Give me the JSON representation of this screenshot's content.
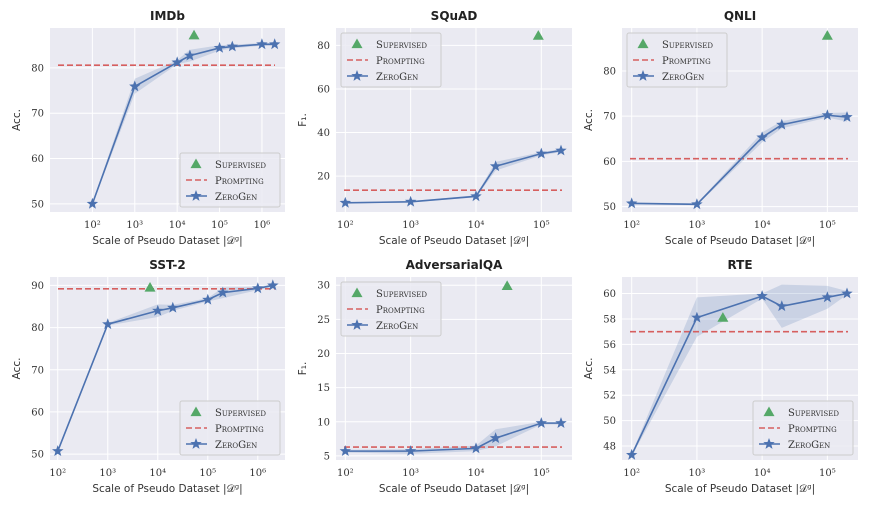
{
  "chart_data": [
    {
      "type": "line",
      "title": "IMDb",
      "ylabel": "Acc.",
      "xlabel": "Scale of Pseudo Dataset |𝒟ᵍ|",
      "xscale": "log",
      "xlim": [
        10,
        3500000
      ],
      "ylim": [
        48.2,
        88.8
      ],
      "yticks": [
        50,
        60,
        70,
        80
      ],
      "xticks": [
        100,
        1000,
        10000,
        100000,
        1000000
      ],
      "xtick_labels": [
        "10²",
        "10³",
        "10⁴",
        "10⁵",
        "10⁶"
      ],
      "legend": "lower-right",
      "grid": true,
      "zerogen": {
        "x": [
          100,
          1000,
          10000,
          20000,
          100000,
          200000,
          1000000,
          2000000
        ],
        "y": [
          50.0,
          75.9,
          81.2,
          82.7,
          84.4,
          84.7,
          85.2,
          85.2
        ],
        "lower": [
          49.8,
          74.3,
          80.8,
          81.4,
          83.8,
          84.3,
          84.9,
          84.9
        ],
        "upper": [
          50.2,
          77.6,
          81.7,
          84.0,
          85.0,
          85.1,
          85.5,
          85.5
        ]
      },
      "prompting": 80.6,
      "supervised": {
        "x": 25000,
        "y": 87.2
      }
    },
    {
      "type": "line",
      "title": "SQuAD",
      "ylabel": "F₁.",
      "xlabel": "Scale of Pseudo Dataset |𝒟ᵍ|",
      "xscale": "log",
      "xlim": [
        72,
        295000
      ],
      "ylim": [
        3.5,
        88
      ],
      "yticks": [
        20,
        40,
        60,
        80
      ],
      "xticks": [
        100,
        1000,
        10000,
        100000
      ],
      "xtick_labels": [
        "10²",
        "10³",
        "10⁴",
        "10⁵"
      ],
      "legend": "upper-left",
      "grid": true,
      "zerogen": {
        "x": [
          100,
          1000,
          10000,
          20000,
          100000,
          200000
        ],
        "y": [
          7.7,
          8.2,
          10.7,
          24.5,
          30.3,
          31.7
        ],
        "lower": [
          7.4,
          7.9,
          10.2,
          22.5,
          29.5,
          31.0
        ],
        "upper": [
          8.0,
          8.5,
          11.2,
          26.5,
          31.0,
          32.4
        ]
      },
      "prompting": 13.5,
      "supervised": {
        "x": 90000,
        "y": 84.5
      }
    },
    {
      "type": "line",
      "title": "QNLI",
      "ylabel": "Acc.",
      "xlabel": "Scale of Pseudo Dataset |𝒟ᵍ|",
      "xscale": "log",
      "xlim": [
        71,
        295000
      ],
      "ylim": [
        48.8,
        89.5
      ],
      "yticks": [
        50,
        60,
        70,
        80
      ],
      "xticks": [
        100,
        1000,
        10000,
        100000
      ],
      "xtick_labels": [
        "10²",
        "10³",
        "10⁴",
        "10⁵"
      ],
      "legend": "upper-left",
      "grid": true,
      "zerogen": {
        "x": [
          100,
          1000,
          10000,
          20000,
          100000,
          200000
        ],
        "y": [
          50.7,
          50.5,
          65.3,
          68.1,
          70.2,
          69.8
        ],
        "lower": [
          50.5,
          50.3,
          64.2,
          67.3,
          69.7,
          68.8
        ],
        "upper": [
          50.9,
          50.7,
          66.4,
          68.9,
          70.7,
          70.8
        ]
      },
      "prompting": 60.6,
      "supervised": {
        "x": 100000,
        "y": 87.8
      }
    },
    {
      "type": "line",
      "title": "SST-2",
      "ylabel": "Acc.",
      "xlabel": "Scale of Pseudo Dataset |𝒟ᵍ|",
      "xscale": "log",
      "xlim": [
        70,
        3500000
      ],
      "ylim": [
        48.6,
        92
      ],
      "yticks": [
        50,
        60,
        70,
        80,
        90
      ],
      "xticks": [
        100,
        1000,
        10000,
        100000,
        1000000
      ],
      "xtick_labels": [
        "10²",
        "10³",
        "10⁴",
        "10⁵",
        "10⁶"
      ],
      "legend": "lower-right",
      "grid": true,
      "zerogen": {
        "x": [
          100,
          1000,
          10000,
          20000,
          100000,
          200000,
          1000000,
          2000000
        ],
        "y": [
          50.7,
          80.8,
          84.0,
          84.7,
          86.6,
          88.3,
          89.3,
          90.0
        ],
        "lower": [
          50.5,
          80.5,
          82.5,
          84.0,
          86.2,
          87.0,
          88.9,
          89.7
        ],
        "upper": [
          50.9,
          81.1,
          85.5,
          85.4,
          87.0,
          89.5,
          89.7,
          90.3
        ]
      },
      "prompting": 89.2,
      "supervised": {
        "x": 7000,
        "y": 89.5
      }
    },
    {
      "type": "line",
      "title": "AdversarialQA",
      "ylabel": "F₁.",
      "xlabel": "Scale of Pseudo Dataset |𝒟ᵍ|",
      "xscale": "log",
      "xlim": [
        72,
        295000
      ],
      "ylim": [
        4.4,
        31.2
      ],
      "yticks": [
        5,
        10,
        15,
        20,
        25,
        30
      ],
      "xticks": [
        100,
        1000,
        10000,
        100000
      ],
      "xtick_labels": [
        "10²",
        "10³",
        "10⁴",
        "10⁵"
      ],
      "legend": "upper-left",
      "grid": true,
      "zerogen": {
        "x": [
          100,
          1000,
          10000,
          20000,
          100000,
          200000
        ],
        "y": [
          5.7,
          5.7,
          6.1,
          7.6,
          9.8,
          9.8
        ],
        "lower": [
          5.5,
          5.3,
          5.7,
          6.4,
          9.6,
          9.6
        ],
        "upper": [
          5.9,
          6.0,
          6.5,
          8.9,
          10.0,
          10.0
        ]
      },
      "prompting": 6.3,
      "supervised": {
        "x": 30000,
        "y": 29.9
      }
    },
    {
      "type": "line",
      "title": "RTE",
      "ylabel": "Acc.",
      "xlabel": "Scale of Pseudo Dataset |𝒟ᵍ|",
      "xscale": "log",
      "xlim": [
        71,
        295000
      ],
      "ylim": [
        46.9,
        61.3
      ],
      "yticks": [
        48,
        50,
        52,
        54,
        56,
        58,
        60
      ],
      "xticks": [
        100,
        1000,
        10000,
        100000
      ],
      "xtick_labels": [
        "10²",
        "10³",
        "10⁴",
        "10⁵"
      ],
      "legend": "lower-right",
      "grid": true,
      "zerogen": {
        "x": [
          100,
          1000,
          10000,
          20000,
          100000,
          200000
        ],
        "y": [
          47.3,
          58.1,
          59.8,
          59.0,
          59.7,
          60.0
        ],
        "lower": [
          47.2,
          56.6,
          59.6,
          57.3,
          58.8,
          59.9
        ],
        "upper": [
          47.4,
          59.7,
          60.0,
          60.7,
          60.6,
          60.2
        ]
      },
      "prompting": 57.0,
      "supervised": {
        "x": 2500,
        "y": 58.1
      }
    }
  ],
  "legend_labels": {
    "supervised": "Supervised",
    "prompting": "Prompting",
    "zerogen": "ZeroGen"
  },
  "colors": {
    "zerogen": "#4c72b0",
    "prompting": "#d65f5f",
    "supervised": "#55a868",
    "background": "#eaeaf2",
    "grid": "#ffffff"
  }
}
